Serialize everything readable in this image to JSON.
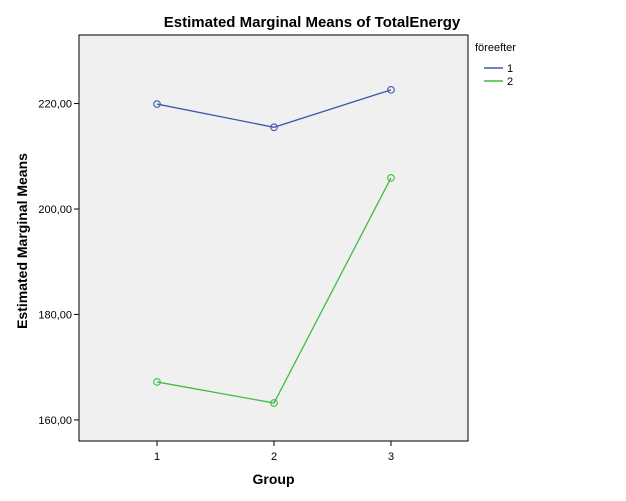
{
  "chart_data": {
    "type": "line",
    "title": "Estimated Marginal Means of TotalEnergy",
    "xlabel": "Group",
    "ylabel": "Estimated Marginal Means",
    "categories": [
      "1",
      "2",
      "3"
    ],
    "ylim": [
      156,
      233
    ],
    "yticks": [
      160,
      180,
      200,
      220
    ],
    "ytick_labels": [
      "160,00",
      "180,00",
      "200,00",
      "220,00"
    ],
    "legend_title": "föreefter",
    "legend_position": "top-right-outside",
    "background": "#f0f0f0",
    "series": [
      {
        "name": "1",
        "color": "#3e58ac",
        "values": [
          219.9,
          215.5,
          222.6
        ]
      },
      {
        "name": "2",
        "color": "#3ebe3e",
        "values": [
          167.2,
          163.2,
          205.9
        ]
      }
    ]
  }
}
